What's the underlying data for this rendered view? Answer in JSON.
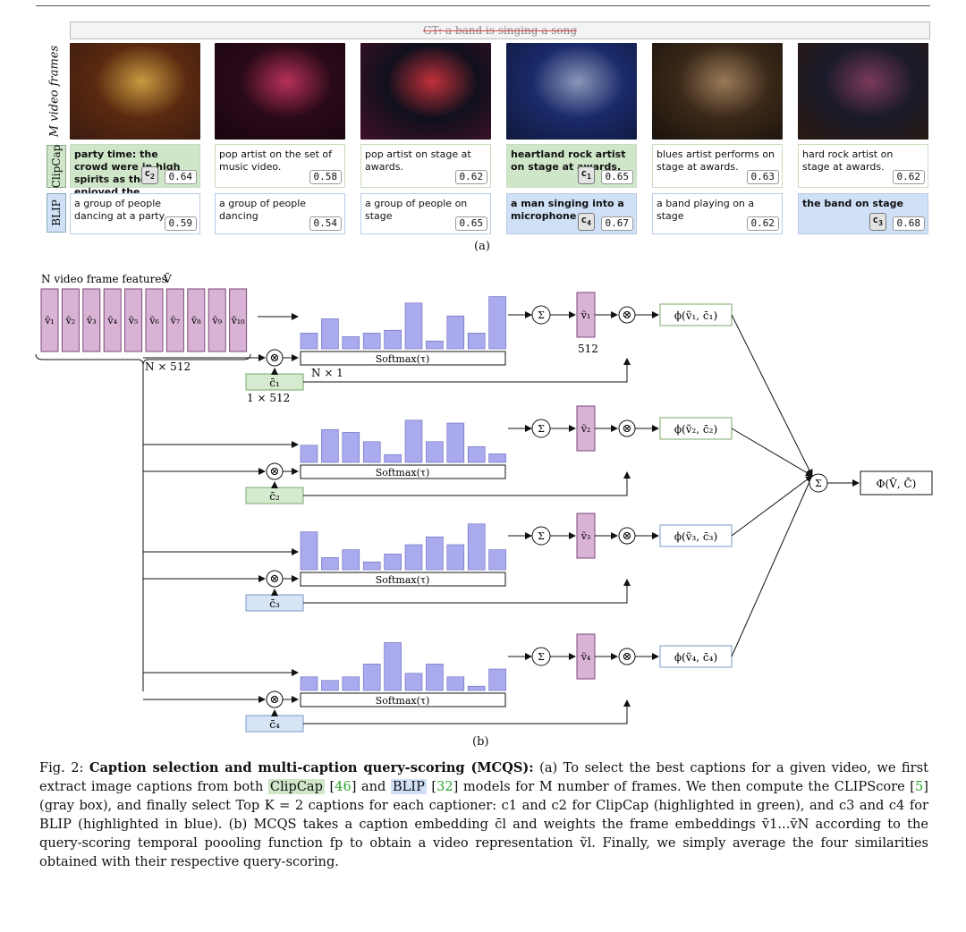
{
  "gt_label": "GT: a band is singing a song",
  "frames_axis_label": "M video frames",
  "captioners": [
    "ClipCap",
    "BLIP"
  ],
  "clipcap": [
    {
      "text": "party time: the crowd were in high spirits as they enjoyed the performance.",
      "score": "0.64",
      "tag": "c2",
      "hl": true
    },
    {
      "text": "pop artist on the set of music video.",
      "score": "0.58",
      "tag": "",
      "hl": false
    },
    {
      "text": "pop artist on stage at awards.",
      "score": "0.62",
      "tag": "",
      "hl": false
    },
    {
      "text": "heartland rock artist on stage at awards.",
      "score": "0.65",
      "tag": "c1",
      "hl": true
    },
    {
      "text": "blues artist performs on stage at awards.",
      "score": "0.63",
      "tag": "",
      "hl": false
    },
    {
      "text": "hard rock artist on stage at awards.",
      "score": "0.62",
      "tag": "",
      "hl": false
    }
  ],
  "blip": [
    {
      "text": "a group of people dancing at a party",
      "score": "0.59",
      "tag": "",
      "hl": false
    },
    {
      "text": "a group of people dancing",
      "score": "0.54",
      "tag": "",
      "hl": false
    },
    {
      "text": "a group of people on stage",
      "score": "0.65",
      "tag": "",
      "hl": false
    },
    {
      "text": "a man singing into a microphone",
      "score": "0.67",
      "tag": "c4",
      "hl": true
    },
    {
      "text": "a band playing on a stage",
      "score": "0.62",
      "tag": "",
      "hl": false
    },
    {
      "text": "the band on stage",
      "score": "0.68",
      "tag": "c3",
      "hl": true
    }
  ],
  "subfig_a": "(a)",
  "subfig_b": "(b)",
  "diagram": {
    "features_title": "N video frame features",
    "features_symbol": "V̄",
    "frame_features": [
      "v̄₁",
      "v̄₂",
      "v̄₃",
      "v̄₄",
      "v̄₅",
      "v̄₆",
      "v̄₇",
      "v̄₈",
      "v̄₉",
      "v̄₁₀"
    ],
    "dim_n512": "N × 512",
    "dim_n1": "N × 1",
    "dim_1x512": "1 × 512",
    "dim_512": "512",
    "softmax": "Softmax(τ)",
    "sum": "Σ",
    "times": "⊗",
    "final": "Φ(V̄, C̄)",
    "branches": [
      {
        "caption": "c̄₁",
        "out": "ṽ₁",
        "phi": "ϕ(ṽ₁, c̄₁)",
        "color": "green",
        "bars": [
          0.22,
          0.42,
          0.17,
          0.22,
          0.26,
          0.64,
          0.11,
          0.46,
          0.22,
          0.73
        ]
      },
      {
        "caption": "c̄₂",
        "out": "ṽ₂",
        "phi": "ϕ(ṽ₂, c̄₂)",
        "color": "green",
        "bars": [
          0.24,
          0.46,
          0.42,
          0.29,
          0.11,
          0.59,
          0.29,
          0.55,
          0.22,
          0.12
        ]
      },
      {
        "caption": "c̄₃",
        "out": "ṽ₃",
        "phi": "ϕ(ṽ₃, c̄₃)",
        "color": "blue",
        "bars": [
          0.53,
          0.17,
          0.28,
          0.11,
          0.22,
          0.35,
          0.46,
          0.35,
          0.64,
          0.28
        ]
      },
      {
        "caption": "c̄₄",
        "out": "ṽ₄",
        "phi": "ϕ(ṽ₄, c̄₄)",
        "color": "blue",
        "bars": [
          0.19,
          0.14,
          0.19,
          0.37,
          0.67,
          0.24,
          0.37,
          0.19,
          0.06,
          0.3
        ]
      }
    ]
  },
  "caption": {
    "fig": "Fig. 2:",
    "title": "Caption selection and multi-caption query-scoring (MCQS):",
    "p1": "(a) To select the best captions for a given video, we first extract image captions from both",
    "clipcap": "ClipCap",
    "ref46": "46",
    "and": "and",
    "blip": "BLIP",
    "ref32": "32",
    "p2": "models for M number of frames. We then compute the CLIPScore",
    "ref5": "5",
    "p3": "(gray box), and finally select Top K = 2 captions for each captioner: c1 and c2 for ClipCap (highlighted in green), and c3 and c4 for BLIP (highlighted in blue). (b) MCQS takes a caption embedding c̄l and weights the frame embeddings v̄1...v̄N according to the query-scoring temporal poooling function fp to obtain a video representation ṽl. Finally, we simply average the four similarities obtained with their respective query-scoring."
  }
}
